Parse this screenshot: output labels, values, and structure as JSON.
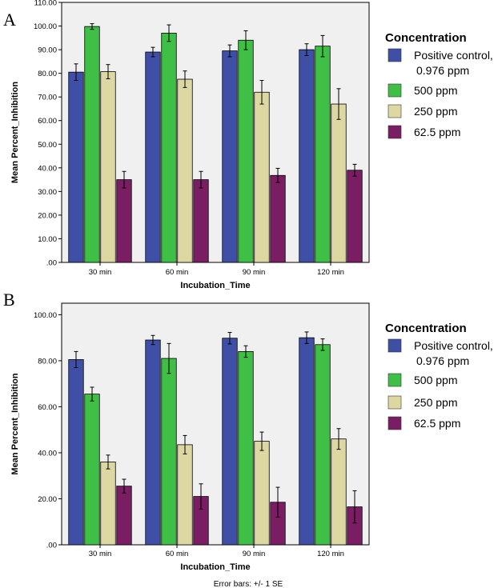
{
  "figure": {
    "footnote": "Error bars: +/- 1 SE"
  },
  "colors": {
    "plot_background": "#f0f0f0",
    "series": [
      "#3f4fa6",
      "#3fbf45",
      "#ddd7a2",
      "#7a1d63"
    ]
  },
  "chart_data": [
    {
      "type": "bar",
      "panel_label": "A",
      "xlabel": "Incubation_Time",
      "ylabel": "Mean Percent_Inhibition",
      "ylim": [
        0,
        110
      ],
      "yticks": [
        0,
        10,
        20,
        30,
        40,
        50,
        60,
        70,
        80,
        90,
        100,
        110
      ],
      "ytick_labels": [
        ".00",
        "10.00",
        "20.00",
        "30.00",
        "40.00",
        "50.00",
        "60.00",
        "70.00",
        "80.00",
        "90.00",
        "100.00",
        "110.00"
      ],
      "categories": [
        "30 min",
        "60 min",
        "90 min",
        "120 min"
      ],
      "legend": {
        "title": "Concentration",
        "position": "right",
        "entries": [
          {
            "lines": [
              "Positive control,",
              "0.976 ppm"
            ]
          },
          {
            "lines": [
              "500 ppm"
            ]
          },
          {
            "lines": [
              "250 ppm"
            ]
          },
          {
            "lines": [
              "62.5 ppm"
            ]
          }
        ]
      },
      "series": [
        {
          "name": "Positive control, 0.976 ppm",
          "values": [
            80.5,
            89.0,
            89.5,
            90.0
          ],
          "errors": [
            3.5,
            2.0,
            2.5,
            2.5
          ]
        },
        {
          "name": "500 ppm",
          "values": [
            99.8,
            97.0,
            94.0,
            91.5
          ],
          "errors": [
            1.2,
            3.5,
            4.0,
            4.5
          ]
        },
        {
          "name": "250 ppm",
          "values": [
            80.7,
            77.5,
            72.0,
            67.0
          ],
          "errors": [
            3.0,
            3.5,
            5.0,
            6.5
          ]
        },
        {
          "name": "62.5 ppm",
          "values": [
            35.0,
            35.0,
            36.8,
            39.0
          ],
          "errors": [
            3.5,
            3.5,
            3.0,
            2.5
          ]
        }
      ]
    },
    {
      "type": "bar",
      "panel_label": "B",
      "xlabel": "Incubation_Time",
      "ylabel": "Mean Percent_Inhibition",
      "ylim": [
        0,
        105
      ],
      "yticks": [
        0,
        20,
        40,
        60,
        80,
        100
      ],
      "ytick_labels": [
        ".00",
        "20.00",
        "40.00",
        "60.00",
        "80.00",
        "100.00"
      ],
      "categories": [
        "30 min",
        "60 min",
        "90 min",
        "120 min"
      ],
      "legend": {
        "title": "Concentration",
        "position": "right",
        "entries": [
          {
            "lines": [
              "Positive control,",
              "0.976 ppm"
            ]
          },
          {
            "lines": [
              "500 ppm"
            ]
          },
          {
            "lines": [
              "250 ppm"
            ]
          },
          {
            "lines": [
              "62.5 ppm"
            ]
          }
        ]
      },
      "series": [
        {
          "name": "Positive control, 0.976 ppm",
          "values": [
            80.5,
            89.0,
            89.8,
            90.0
          ],
          "errors": [
            3.5,
            2.0,
            2.5,
            2.5
          ]
        },
        {
          "name": "500 ppm",
          "values": [
            65.5,
            81.0,
            84.0,
            87.0
          ],
          "errors": [
            3.0,
            6.5,
            2.5,
            2.5
          ]
        },
        {
          "name": "250 ppm",
          "values": [
            36.0,
            43.5,
            45.0,
            46.0
          ],
          "errors": [
            3.0,
            4.0,
            4.0,
            4.5
          ]
        },
        {
          "name": "62.5 ppm",
          "values": [
            25.5,
            21.0,
            18.5,
            16.5
          ],
          "errors": [
            3.0,
            5.5,
            6.5,
            7.0
          ]
        }
      ]
    }
  ]
}
